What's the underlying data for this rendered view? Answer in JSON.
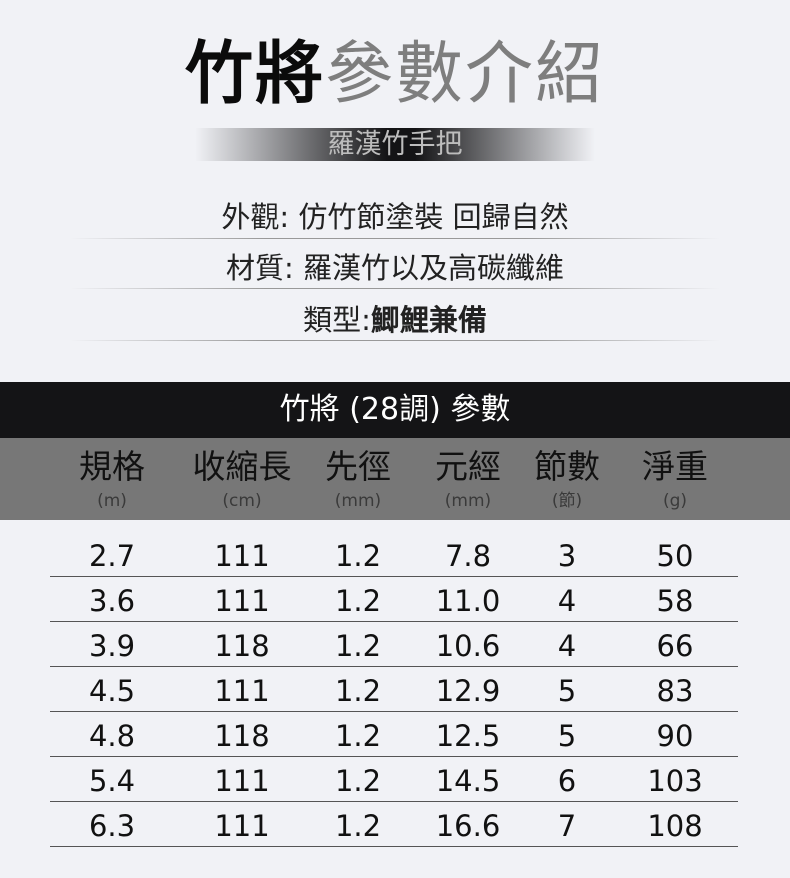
{
  "title": {
    "bold": "竹將",
    "light": "參數介紹"
  },
  "subtitle": "羅漢竹手把",
  "features": [
    {
      "label": "外觀:",
      "value": " 仿竹節塗裝 回歸自然"
    },
    {
      "label": "材質:",
      "value": " 羅漢竹以及高碳纖維"
    },
    {
      "label": "類型:",
      "value": "鯽鯉兼備"
    }
  ],
  "table": {
    "title": "竹將 (28調) 參數",
    "columns": [
      {
        "name": "規格",
        "unit": "(m)"
      },
      {
        "name": "收縮長",
        "unit": "(cm)"
      },
      {
        "name": "先徑",
        "unit": "(mm)"
      },
      {
        "name": "元經",
        "unit": "(mm)"
      },
      {
        "name": "節數",
        "unit": "(節)"
      },
      {
        "name": "淨重",
        "unit": "(g)"
      }
    ],
    "rows": [
      [
        "2.7",
        "111",
        "1.2",
        "7.8",
        "3",
        "50"
      ],
      [
        "3.6",
        "111",
        "1.2",
        "11.0",
        "4",
        "58"
      ],
      [
        "3.9",
        "118",
        "1.2",
        "10.6",
        "4",
        "66"
      ],
      [
        "4.5",
        "111",
        "1.2",
        "12.9",
        "5",
        "83"
      ],
      [
        "4.8",
        "118",
        "1.2",
        "12.5",
        "5",
        "90"
      ],
      [
        "5.4",
        "111",
        "1.2",
        "14.5",
        "6",
        "103"
      ],
      [
        "6.3",
        "111",
        "1.2",
        "16.6",
        "7",
        "108"
      ]
    ]
  }
}
